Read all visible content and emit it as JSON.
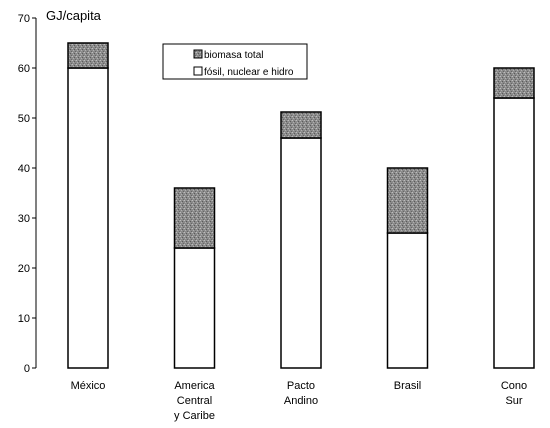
{
  "chart_data": {
    "type": "bar",
    "stacked": true,
    "ylabel": "GJ/capita",
    "ylim": [
      0,
      70
    ],
    "yticks": [
      0,
      10,
      20,
      30,
      40,
      50,
      60,
      70
    ],
    "grid": false,
    "legend_position": "top-center",
    "categories": [
      [
        "México"
      ],
      [
        "America",
        "Central",
        "y Caribe"
      ],
      [
        "Pacto",
        "Andino"
      ],
      [
        "Brasil"
      ],
      [
        "Cono",
        "Sur"
      ]
    ],
    "series": [
      {
        "name": "fósil, nuclear e hidro",
        "values": [
          60,
          24,
          46,
          27,
          54
        ],
        "color": "#ffffff"
      },
      {
        "name": "biomasa total",
        "values": [
          5,
          12,
          5.2,
          13,
          6
        ],
        "color": "#8c8c8c"
      }
    ],
    "legend_order": [
      1,
      0
    ]
  }
}
